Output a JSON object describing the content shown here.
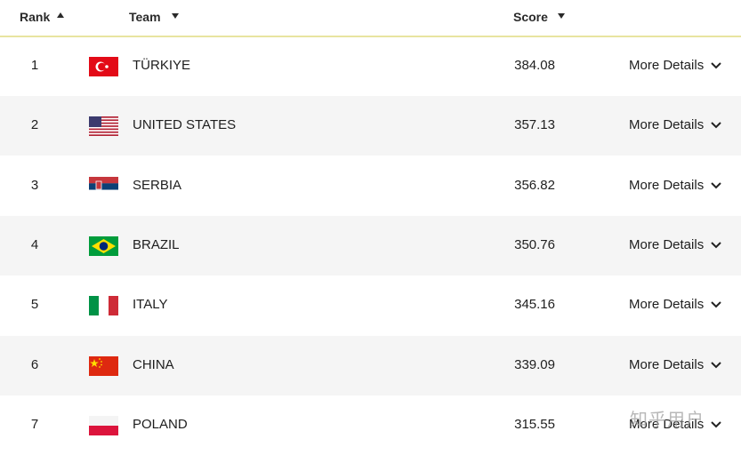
{
  "header": {
    "rank": "Rank",
    "team": "Team",
    "score": "Score"
  },
  "table": {
    "rows": [
      {
        "rank": 1,
        "team": "TÜRKIYE",
        "score": 384.08,
        "action": "More Details"
      },
      {
        "rank": 2,
        "team": "UNITED STATES",
        "score": 357.13,
        "action": "More Details"
      },
      {
        "rank": 3,
        "team": "SERBIA",
        "score": 356.82,
        "action": "More Details"
      },
      {
        "rank": 4,
        "team": "BRAZIL",
        "score": 350.76,
        "action": "More Details"
      },
      {
        "rank": 5,
        "team": "ITALY",
        "score": 345.16,
        "action": "More Details"
      },
      {
        "rank": 6,
        "team": "CHINA",
        "score": 339.09,
        "action": "More Details"
      },
      {
        "rank": 7,
        "team": "POLAND",
        "score": 315.55,
        "action": "More Details"
      }
    ]
  },
  "watermark": "知乎用户"
}
